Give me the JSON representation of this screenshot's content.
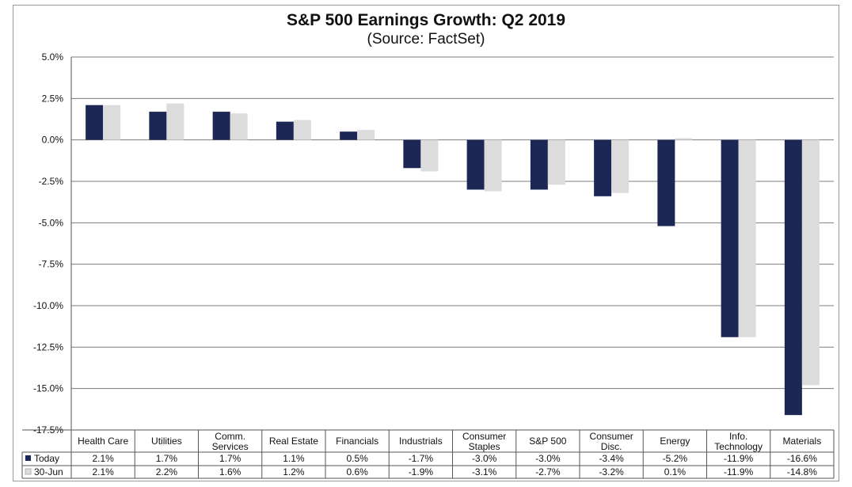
{
  "chart_data": {
    "type": "bar",
    "title": "S&P 500 Earnings Growth:  Q2 2019",
    "subtitle": "(Source: FactSet)",
    "xlabel": "",
    "ylabel": "",
    "ylim": [
      -17.5,
      5.0
    ],
    "y_ticks": [
      "5.0%",
      "2.5%",
      "0.0%",
      "-2.5%",
      "-5.0%",
      "-7.5%",
      "-10.0%",
      "-12.5%",
      "-15.0%",
      "-17.5%"
    ],
    "grid": true,
    "legend_position": "bottom-left, in data table",
    "categories": [
      [
        "Health Care"
      ],
      [
        "Utilities"
      ],
      [
        "Comm.",
        "Services"
      ],
      [
        "Real Estate"
      ],
      [
        "Financials"
      ],
      [
        "Industrials"
      ],
      [
        "Consumer",
        "Staples"
      ],
      [
        "S&P 500"
      ],
      [
        "Consumer",
        "Disc."
      ],
      [
        "Energy"
      ],
      [
        "Info.",
        "Technology"
      ],
      [
        "Materials"
      ]
    ],
    "series": [
      {
        "name": "Today",
        "color": "#1c2755",
        "values": [
          2.1,
          1.7,
          1.7,
          1.1,
          0.5,
          -1.7,
          -3.0,
          -3.0,
          -3.4,
          -5.2,
          -11.9,
          -16.6
        ],
        "labels": [
          "2.1%",
          "1.7%",
          "1.7%",
          "1.1%",
          "0.5%",
          "-1.7%",
          "-3.0%",
          "-3.0%",
          "-3.4%",
          "-5.2%",
          "-11.9%",
          "-16.6%"
        ]
      },
      {
        "name": "30-Jun",
        "color": "#dcdcdc",
        "values": [
          2.1,
          2.2,
          1.6,
          1.2,
          0.6,
          -1.9,
          -3.1,
          -2.7,
          -3.2,
          0.1,
          -11.9,
          -14.8
        ],
        "labels": [
          "2.1%",
          "2.2%",
          "1.6%",
          "1.2%",
          "0.6%",
          "-1.9%",
          "-3.1%",
          "-2.7%",
          "-3.2%",
          "0.1%",
          "-11.9%",
          "-14.8%"
        ]
      }
    ]
  }
}
